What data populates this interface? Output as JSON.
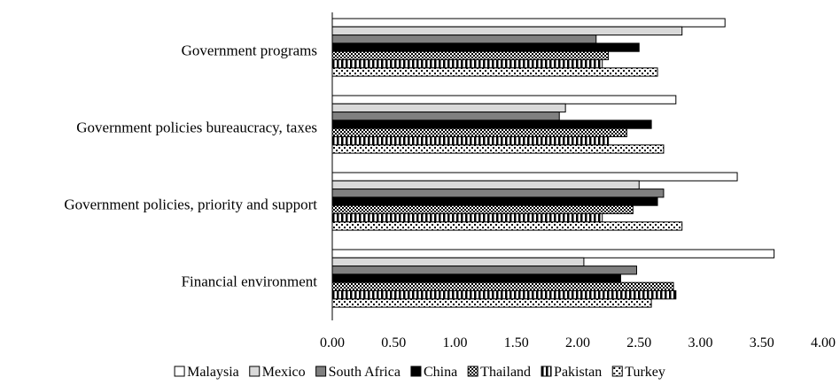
{
  "chart_data": {
    "type": "bar",
    "orientation": "horizontal",
    "categories": [
      "Government programs",
      "Government policies bureaucracy, taxes",
      "Government policies, priority and support",
      "Financial environment"
    ],
    "series": [
      {
        "name": "Malaysia",
        "pattern": "white",
        "values": [
          3.2,
          2.8,
          3.3,
          3.6
        ]
      },
      {
        "name": "Mexico",
        "pattern": "lightgray",
        "values": [
          2.85,
          1.9,
          2.5,
          2.05
        ]
      },
      {
        "name": "South Africa",
        "pattern": "darkgray",
        "values": [
          2.15,
          1.85,
          2.7,
          2.48
        ]
      },
      {
        "name": "China",
        "pattern": "black",
        "values": [
          2.5,
          2.6,
          2.65,
          2.35
        ]
      },
      {
        "name": "Thailand",
        "pattern": "checker",
        "values": [
          2.25,
          2.4,
          2.45,
          2.78
        ]
      },
      {
        "name": "Pakistan",
        "pattern": "vstripes",
        "values": [
          2.2,
          2.25,
          2.2,
          2.8
        ]
      },
      {
        "name": "Turkey",
        "pattern": "dots",
        "values": [
          2.65,
          2.7,
          2.85,
          2.6
        ]
      }
    ],
    "x_ticks": [
      "0.00",
      "0.50",
      "1.00",
      "1.50",
      "2.00",
      "2.50",
      "3.00",
      "3.50",
      "4.00"
    ],
    "xlim": [
      0,
      4
    ],
    "grid": false,
    "legend_position": "bottom"
  }
}
